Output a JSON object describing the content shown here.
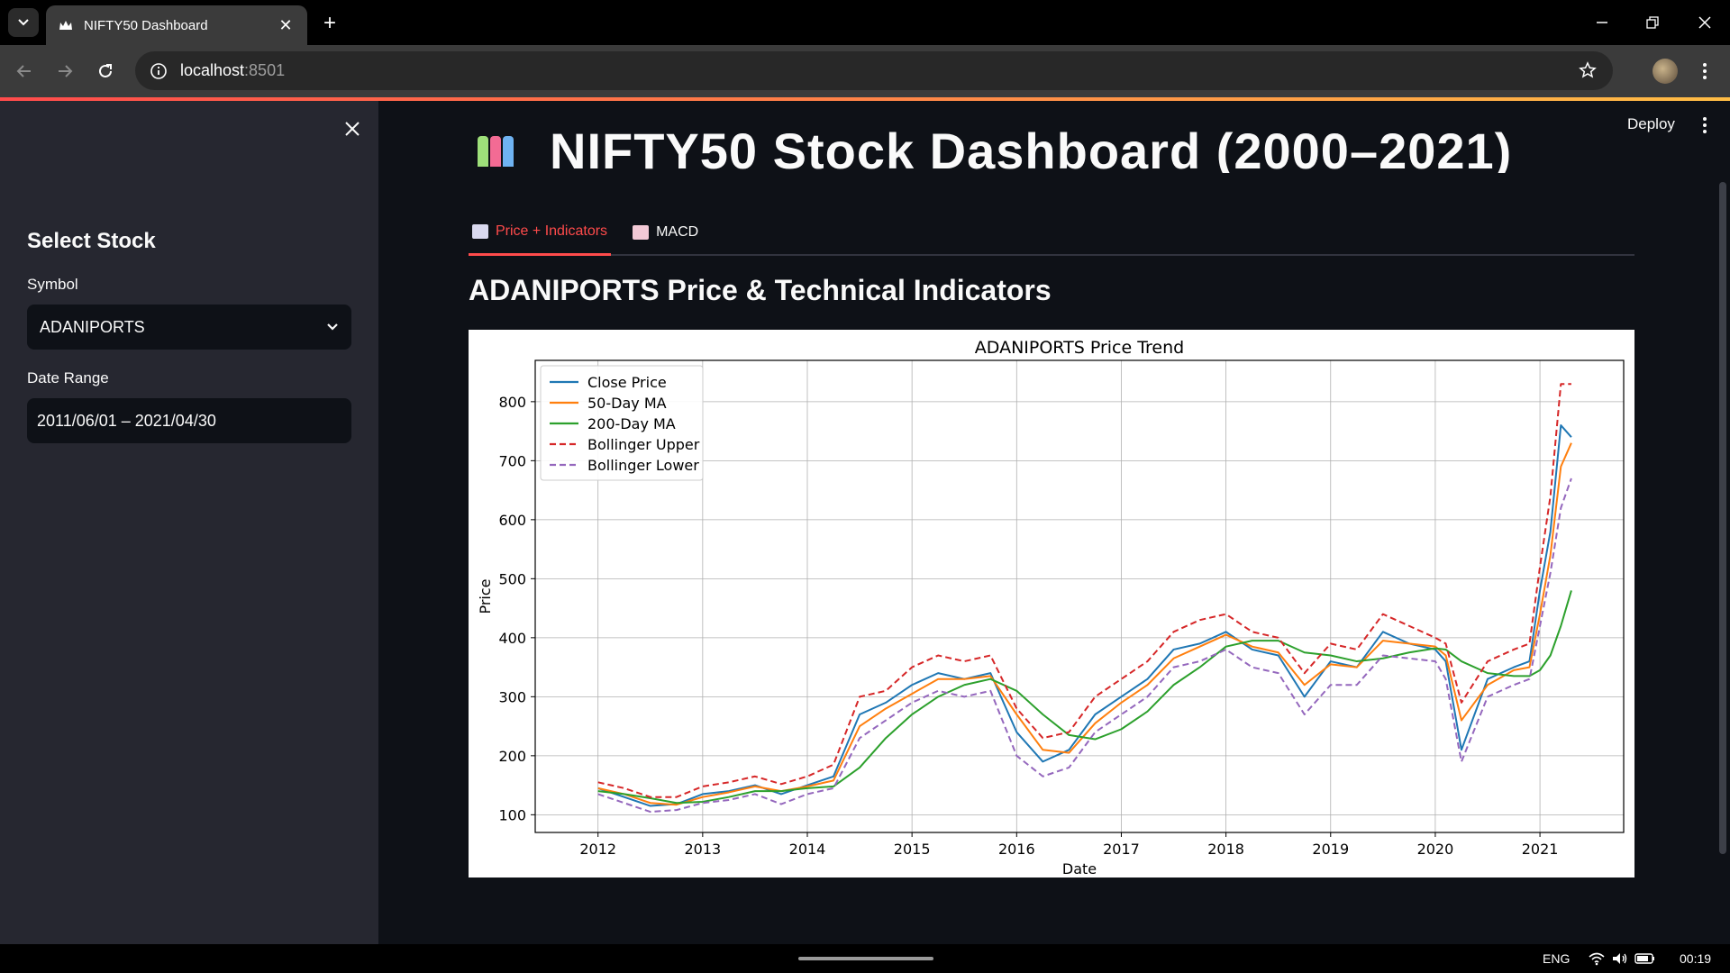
{
  "browser": {
    "tab_title": "NIFTY50 Dashboard",
    "url_host": "localhost",
    "url_port": ":8501"
  },
  "sidebar": {
    "header": "Select Stock",
    "symbol_label": "Symbol",
    "symbol_value": "ADANIPORTS",
    "date_label": "Date Range",
    "date_value": "2011/06/01 – 2021/04/30"
  },
  "app": {
    "deploy_label": "Deploy",
    "page_title": "NIFTY50 Stock Dashboard (2000–2021)",
    "tabs": [
      {
        "label": "Price + Indicators",
        "active": true
      },
      {
        "label": "MACD",
        "active": false
      }
    ],
    "section_title": "ADANIPORTS Price & Technical Indicators"
  },
  "chart_data": {
    "type": "line",
    "title": "ADANIPORTS Price Trend",
    "xlabel": "Date",
    "ylabel": "Price",
    "xlim": [
      2011.4,
      2021.8
    ],
    "ylim": [
      70,
      870
    ],
    "xticks": [
      "2012",
      "2013",
      "2014",
      "2015",
      "2016",
      "2017",
      "2018",
      "2019",
      "2020",
      "2021"
    ],
    "yticks": [
      100,
      200,
      300,
      400,
      500,
      600,
      700,
      800
    ],
    "grid": true,
    "legend": "top-left",
    "x": [
      2012.0,
      2012.25,
      2012.5,
      2012.75,
      2013.0,
      2013.25,
      2013.5,
      2013.75,
      2014.0,
      2014.25,
      2014.5,
      2014.75,
      2015.0,
      2015.25,
      2015.5,
      2015.75,
      2016.0,
      2016.25,
      2016.5,
      2016.75,
      2017.0,
      2017.25,
      2017.5,
      2017.75,
      2018.0,
      2018.25,
      2018.5,
      2018.75,
      2019.0,
      2019.25,
      2019.5,
      2019.75,
      2020.0,
      2020.1,
      2020.25,
      2020.5,
      2020.75,
      2020.9,
      2021.0,
      2021.1,
      2021.2,
      2021.3
    ],
    "series": [
      {
        "name": "Close Price",
        "color": "#1f77b4",
        "dash": "solid",
        "values": [
          145,
          130,
          115,
          118,
          135,
          140,
          150,
          135,
          150,
          165,
          270,
          290,
          320,
          340,
          330,
          340,
          240,
          190,
          210,
          270,
          300,
          330,
          380,
          390,
          410,
          380,
          370,
          300,
          360,
          350,
          410,
          390,
          380,
          360,
          210,
          330,
          350,
          360,
          480,
          580,
          760,
          740
        ]
      },
      {
        "name": "50-Day MA",
        "color": "#ff7f0e",
        "dash": "solid",
        "values": [
          145,
          135,
          120,
          117,
          130,
          138,
          148,
          140,
          148,
          158,
          250,
          280,
          305,
          330,
          330,
          335,
          270,
          210,
          205,
          255,
          290,
          320,
          365,
          385,
          405,
          385,
          375,
          320,
          355,
          350,
          395,
          390,
          385,
          370,
          260,
          320,
          345,
          350,
          440,
          540,
          690,
          730
        ]
      },
      {
        "name": "200-Day MA",
        "color": "#2ca02c",
        "dash": "solid",
        "values": [
          140,
          135,
          128,
          120,
          122,
          130,
          140,
          140,
          145,
          148,
          180,
          230,
          270,
          300,
          320,
          330,
          310,
          270,
          235,
          228,
          245,
          275,
          320,
          350,
          385,
          395,
          395,
          375,
          370,
          360,
          365,
          375,
          382,
          380,
          360,
          340,
          335,
          335,
          345,
          370,
          420,
          480
        ]
      },
      {
        "name": "Bollinger Upper",
        "color": "#d62728",
        "dash": "dashed",
        "values": [
          155,
          145,
          130,
          130,
          148,
          155,
          165,
          152,
          165,
          185,
          300,
          310,
          350,
          370,
          360,
          370,
          280,
          230,
          240,
          300,
          330,
          360,
          410,
          430,
          440,
          410,
          400,
          340,
          390,
          380,
          440,
          420,
          400,
          390,
          290,
          360,
          380,
          390,
          520,
          640,
          830,
          830
        ]
      },
      {
        "name": "Bollinger Lower",
        "color": "#9467bd",
        "dash": "dashed",
        "values": [
          135,
          120,
          105,
          108,
          120,
          125,
          135,
          118,
          135,
          145,
          230,
          260,
          290,
          310,
          300,
          310,
          200,
          165,
          180,
          240,
          270,
          300,
          350,
          360,
          380,
          350,
          340,
          270,
          320,
          320,
          370,
          365,
          360,
          330,
          190,
          300,
          320,
          330,
          420,
          510,
          620,
          670
        ]
      }
    ]
  },
  "system": {
    "lang": "ENG",
    "time": "00:19"
  }
}
